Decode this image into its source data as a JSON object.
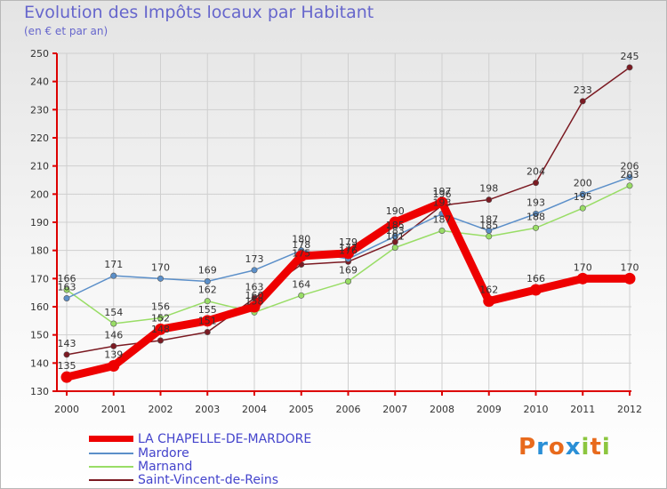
{
  "header": {
    "title": "Evolution des Impôts locaux par Habitant",
    "subtitle": "(en € et par an)"
  },
  "logo": {
    "text": "Proxiti",
    "colors": [
      "#e86a1c",
      "#2a8fd6",
      "#e86a1c",
      "#2a8fd6",
      "#8cc63f",
      "#e86a1c",
      "#8cc63f"
    ]
  },
  "chart_data": {
    "type": "line",
    "title": "Evolution des Impôts locaux par Habitant",
    "subtitle": "(en € et par an)",
    "xlabel": "",
    "ylabel": "",
    "ylim": [
      130,
      250
    ],
    "yticks": [
      130,
      140,
      150,
      160,
      170,
      180,
      190,
      200,
      210,
      220,
      230,
      240,
      250
    ],
    "grid": true,
    "legend": "bottom-left",
    "x": [
      "2000",
      "2001",
      "2002",
      "2003",
      "2004",
      "2005",
      "2006",
      "2007",
      "2008",
      "2009",
      "2010",
      "2011",
      "2012"
    ],
    "series": [
      {
        "name": "Saint-Vincent-de-Reins",
        "color": "#7b1a22",
        "values": [
          143,
          146,
          148,
          151,
          163,
          175,
          176,
          183,
          196,
          198,
          204,
          233,
          245
        ]
      },
      {
        "name": "Marnand",
        "color": "#99dd66",
        "values": [
          166,
          154,
          156,
          162,
          158,
          164,
          169,
          181,
          187,
          185,
          188,
          195,
          203
        ]
      },
      {
        "name": "Mardore",
        "color": "#5b8fc9",
        "values": [
          163,
          171,
          170,
          169,
          173,
          180,
          177,
          185,
          193,
          187,
          193,
          200,
          206
        ]
      },
      {
        "name": "LA CHAPELLE-DE-MARDORE",
        "color": "#ee0000",
        "values": [
          135,
          139,
          152,
          155,
          160,
          178,
          179,
          190,
          197,
          162,
          166,
          170,
          170
        ]
      }
    ],
    "data_labels": [
      {
        "series": "Saint-Vincent-de-Reins",
        "labels": [
          "143",
          "146",
          "148",
          "151",
          "163",
          "175",
          "176",
          "183",
          "196",
          "198",
          "204",
          "233",
          "245"
        ]
      },
      {
        "series": "Marnand",
        "labels": [
          "166",
          "154",
          "156",
          "162",
          "158",
          "164",
          "169",
          "181",
          "187",
          "185",
          "188",
          "195",
          "203"
        ]
      },
      {
        "series": "Mardore",
        "labels": [
          "163",
          "171",
          "170",
          "169",
          "173",
          "180",
          "177",
          "185",
          "193",
          "187",
          "193",
          "200",
          "206"
        ]
      },
      {
        "series": "LA CHAPELLE-DE-MARDORE",
        "labels": [
          "135",
          "139",
          "152",
          "155",
          "160",
          "178",
          "179",
          "190",
          "197",
          "162",
          "166",
          "170",
          "170"
        ]
      }
    ],
    "legend_entries": [
      "LA CHAPELLE-DE-MARDORE",
      "Mardore",
      "Marnand",
      "Saint-Vincent-de-Reins"
    ]
  }
}
